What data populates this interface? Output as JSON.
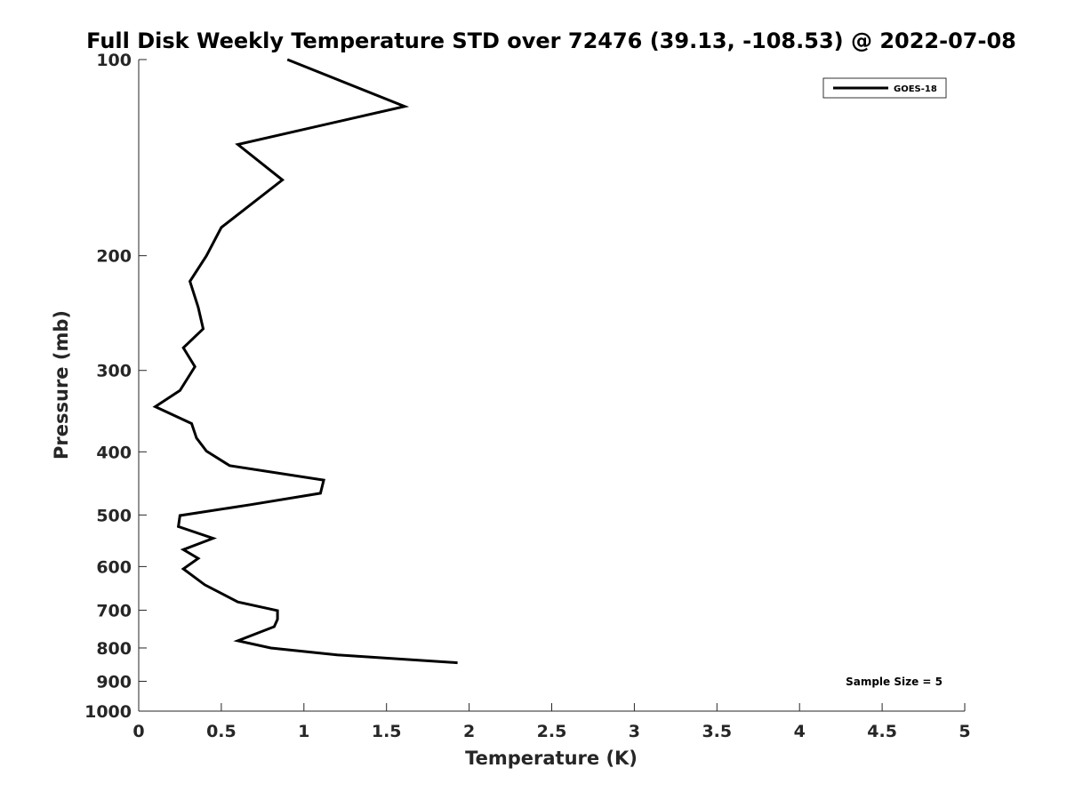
{
  "chart_data": {
    "type": "line",
    "title": "Full Disk Weekly Temperature STD over 72476 (39.13, -108.53) @ 2022-07-08",
    "xlabel": "Temperature (K)",
    "ylabel": "Pressure (mb)",
    "xlim": [
      0,
      5
    ],
    "ylim": [
      1000,
      100
    ],
    "y_scale": "log",
    "y_reversed": true,
    "grid": false,
    "legend_position": "top-right",
    "x_ticks": [
      "0",
      "0.5",
      "1",
      "1.5",
      "2",
      "2.5",
      "3",
      "3.5",
      "4",
      "4.5",
      "5"
    ],
    "y_ticks": [
      "100",
      "200",
      "300",
      "400",
      "500",
      "600",
      "700",
      "800",
      "900",
      "1000"
    ],
    "annotation": "Sample Size = 5",
    "series": [
      {
        "name": "GOES-18",
        "color": "#000000",
        "points": [
          {
            "x": 0.9,
            "y": 100
          },
          {
            "x": 1.61,
            "y": 118
          },
          {
            "x": 0.6,
            "y": 135
          },
          {
            "x": 0.87,
            "y": 153
          },
          {
            "x": 0.5,
            "y": 181
          },
          {
            "x": 0.41,
            "y": 200
          },
          {
            "x": 0.31,
            "y": 219
          },
          {
            "x": 0.36,
            "y": 240
          },
          {
            "x": 0.39,
            "y": 259
          },
          {
            "x": 0.27,
            "y": 277
          },
          {
            "x": 0.34,
            "y": 296
          },
          {
            "x": 0.25,
            "y": 322
          },
          {
            "x": 0.1,
            "y": 341
          },
          {
            "x": 0.32,
            "y": 362
          },
          {
            "x": 0.35,
            "y": 381
          },
          {
            "x": 0.41,
            "y": 399
          },
          {
            "x": 0.55,
            "y": 420
          },
          {
            "x": 1.12,
            "y": 442
          },
          {
            "x": 1.1,
            "y": 463
          },
          {
            "x": 0.68,
            "y": 482
          },
          {
            "x": 0.25,
            "y": 501
          },
          {
            "x": 0.24,
            "y": 521
          },
          {
            "x": 0.45,
            "y": 543
          },
          {
            "x": 0.27,
            "y": 565
          },
          {
            "x": 0.36,
            "y": 583
          },
          {
            "x": 0.27,
            "y": 605
          },
          {
            "x": 0.4,
            "y": 640
          },
          {
            "x": 0.6,
            "y": 680
          },
          {
            "x": 0.84,
            "y": 701
          },
          {
            "x": 0.84,
            "y": 723
          },
          {
            "x": 0.82,
            "y": 742
          },
          {
            "x": 0.6,
            "y": 780
          },
          {
            "x": 0.8,
            "y": 800
          },
          {
            "x": 1.2,
            "y": 820
          },
          {
            "x": 1.93,
            "y": 843
          }
        ]
      }
    ]
  }
}
